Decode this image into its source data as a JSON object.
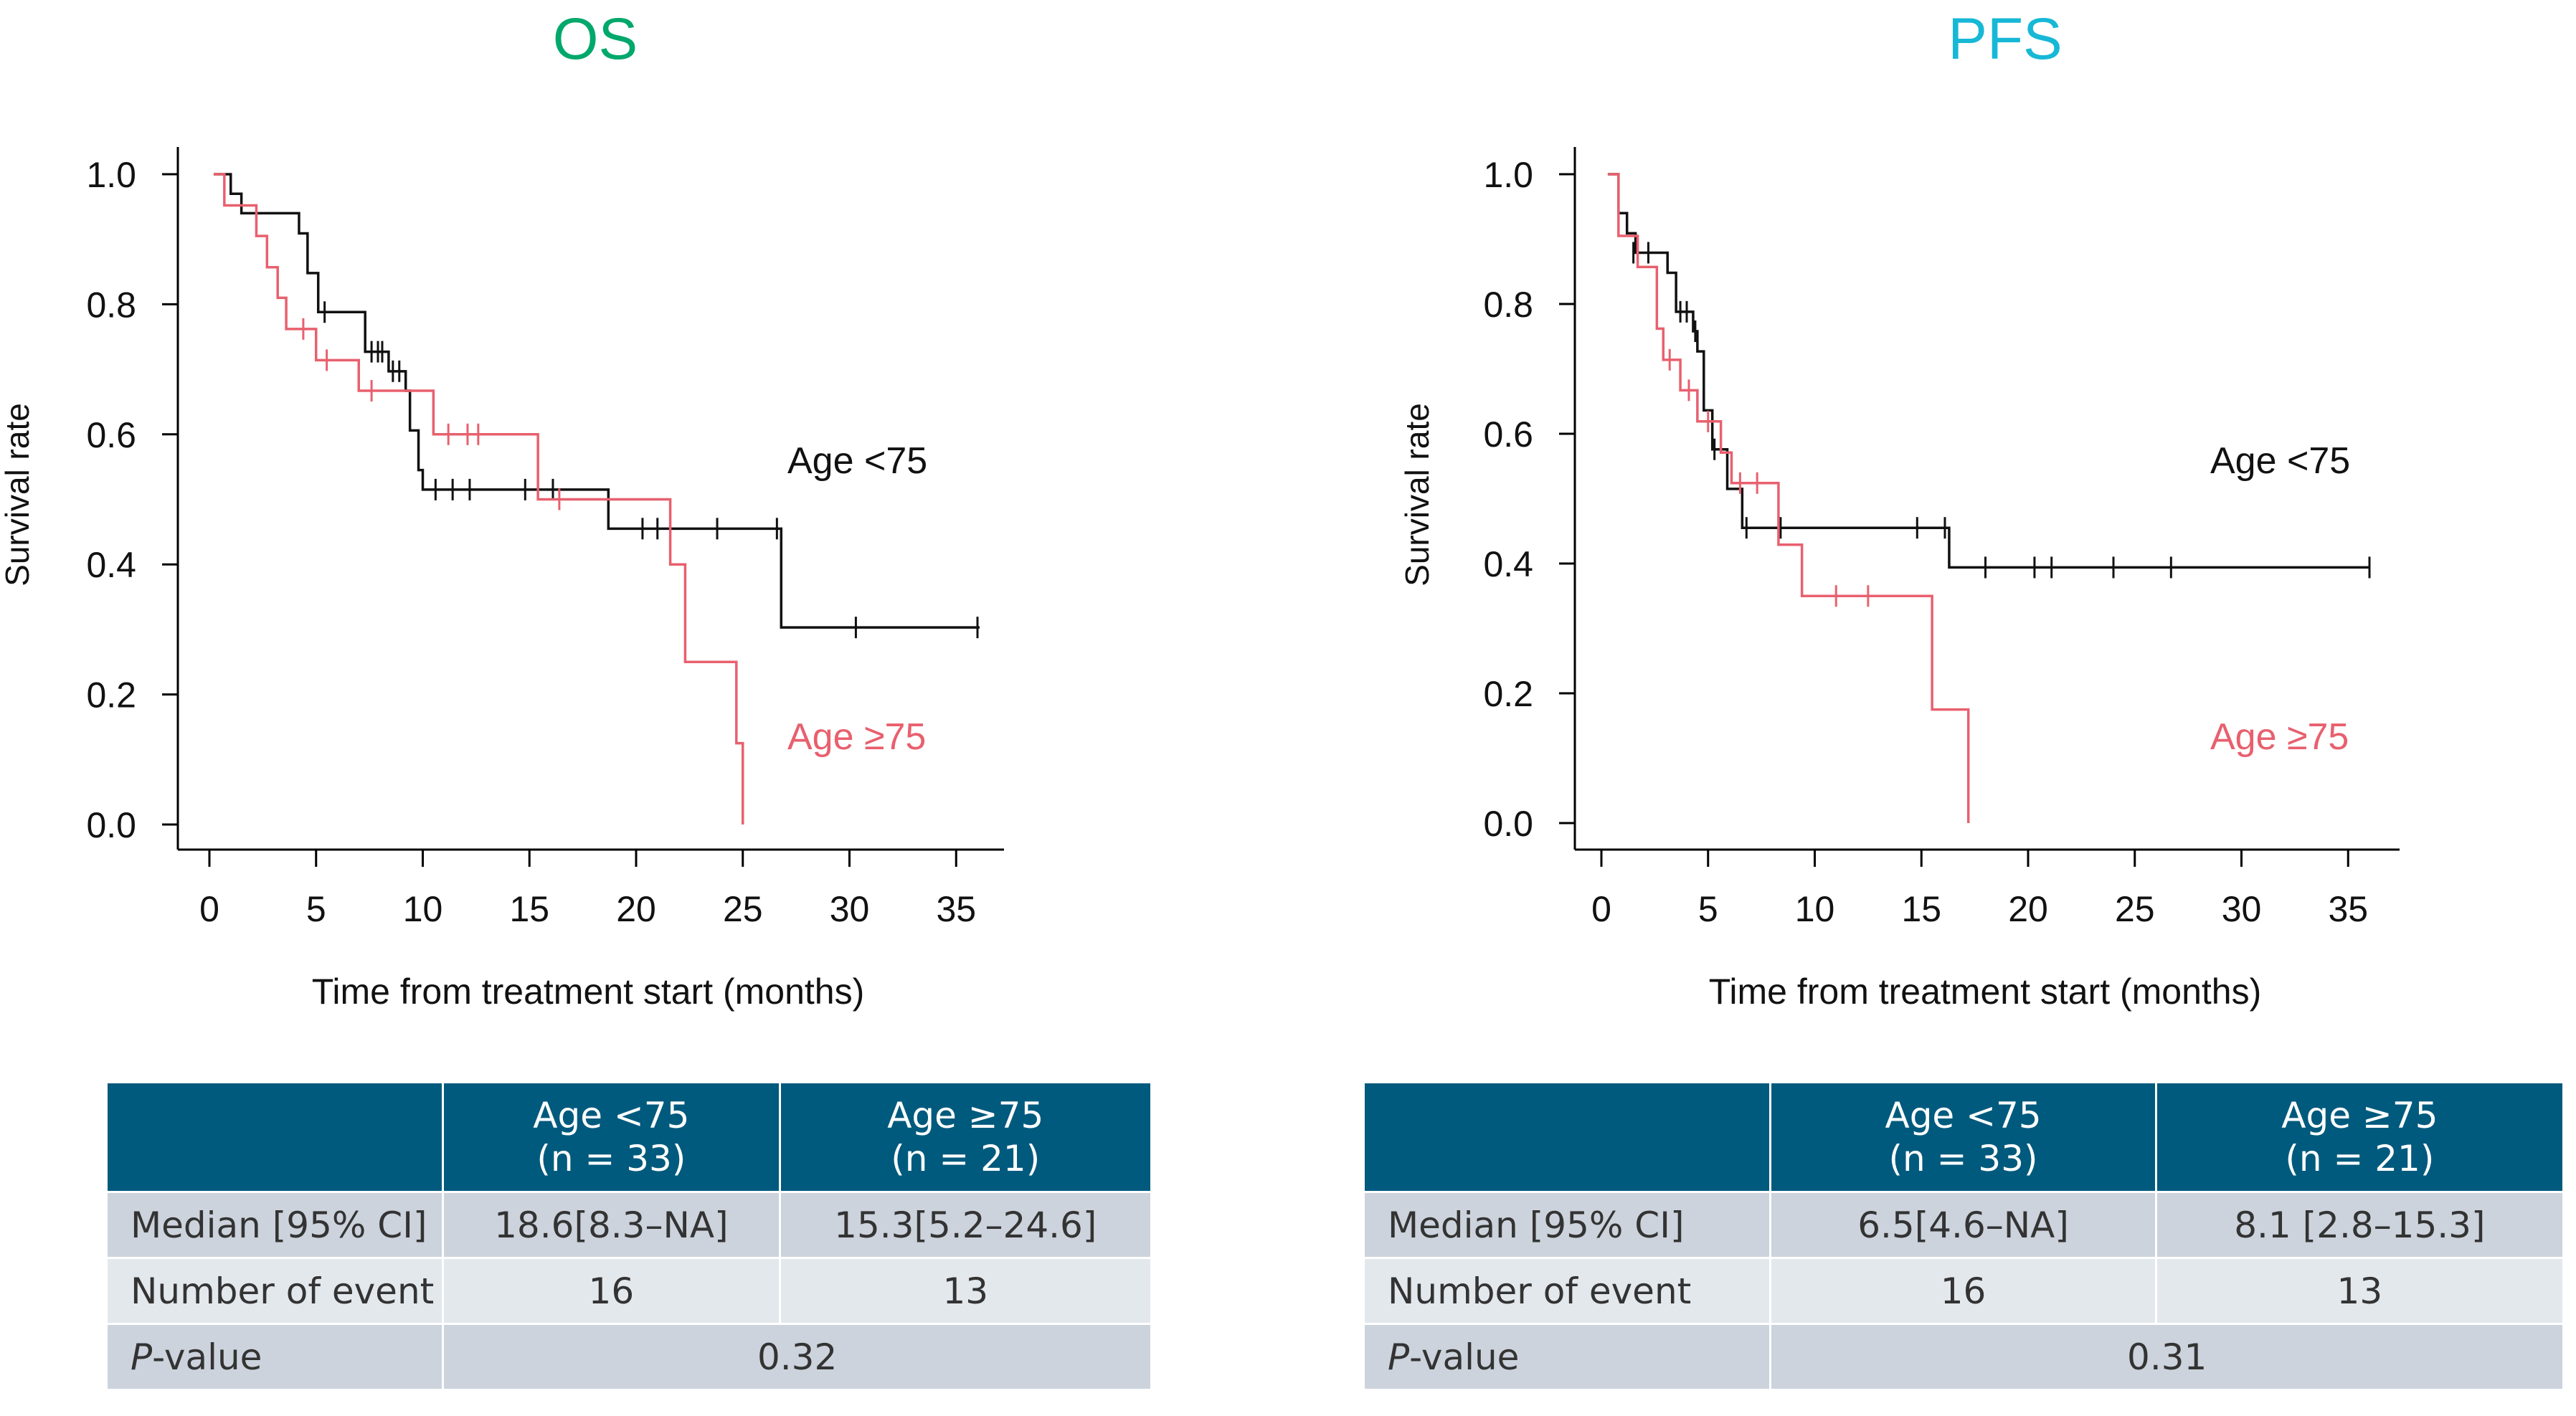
{
  "colors": {
    "os_title": "#00a86b",
    "pfs_title": "#17b8d6",
    "young": "#111111",
    "old": "#e8606e",
    "table_header": "#005a7d"
  },
  "chart_data": [
    {
      "id": "os",
      "type": "line",
      "subtype": "kaplan-meier",
      "title": "OS",
      "xlabel": "Time from treatment start (months)",
      "ylabel": "Survival rate",
      "xlim": [
        0,
        37
      ],
      "ylim": [
        0,
        1.04
      ],
      "xticks": [
        "0",
        "5",
        "10",
        "15",
        "20",
        "25",
        "30",
        "35"
      ],
      "yticks": [
        "0.0",
        "0.2",
        "0.4",
        "0.6",
        "0.8",
        "1.0"
      ],
      "series": [
        {
          "name": "Age <75",
          "label": "Age <75",
          "color": "#111111",
          "steps": [
            [
              0.2,
              1.0
            ],
            [
              1.0,
              0.97
            ],
            [
              1.5,
              0.94
            ],
            [
              4.2,
              0.909
            ],
            [
              4.6,
              0.848
            ],
            [
              5.1,
              0.788
            ],
            [
              7.3,
              0.727
            ],
            [
              8.4,
              0.697
            ],
            [
              9.2,
              0.667
            ],
            [
              9.4,
              0.606
            ],
            [
              9.8,
              0.545
            ],
            [
              10.0,
              0.515
            ],
            [
              18.7,
              0.455
            ],
            [
              26.8,
              0.303
            ],
            [
              36.1,
              0.303
            ]
          ],
          "censors": [
            [
              5.4,
              0.788
            ],
            [
              7.6,
              0.727
            ],
            [
              7.9,
              0.727
            ],
            [
              8.1,
              0.727
            ],
            [
              8.6,
              0.697
            ],
            [
              8.9,
              0.697
            ],
            [
              10.6,
              0.515
            ],
            [
              11.4,
              0.515
            ],
            [
              12.2,
              0.515
            ],
            [
              14.8,
              0.515
            ],
            [
              16.1,
              0.515
            ],
            [
              20.3,
              0.455
            ],
            [
              21.0,
              0.455
            ],
            [
              23.8,
              0.455
            ],
            [
              26.6,
              0.455
            ],
            [
              30.3,
              0.303
            ],
            [
              36.0,
              0.303
            ]
          ]
        },
        {
          "name": "Age ≥75",
          "label": "Age ≥75",
          "color": "#e8606e",
          "steps": [
            [
              0.2,
              1.0
            ],
            [
              0.7,
              0.952
            ],
            [
              2.2,
              0.905
            ],
            [
              2.7,
              0.857
            ],
            [
              3.2,
              0.81
            ],
            [
              3.6,
              0.762
            ],
            [
              5.0,
              0.714
            ],
            [
              7.0,
              0.667
            ],
            [
              10.5,
              0.6
            ],
            [
              15.4,
              0.5
            ],
            [
              21.6,
              0.4
            ],
            [
              22.3,
              0.25
            ],
            [
              24.7,
              0.125
            ],
            [
              25.0,
              0.0
            ]
          ],
          "censors": [
            [
              4.4,
              0.762
            ],
            [
              5.5,
              0.714
            ],
            [
              7.6,
              0.667
            ],
            [
              11.2,
              0.6
            ],
            [
              12.1,
              0.6
            ],
            [
              12.6,
              0.6
            ],
            [
              16.4,
              0.5
            ]
          ]
        }
      ]
    },
    {
      "id": "pfs",
      "type": "line",
      "subtype": "kaplan-meier",
      "title": "PFS",
      "xlabel": "Time from treatment start (months)",
      "ylabel": "Survival rate",
      "xlim": [
        0,
        37
      ],
      "ylim": [
        0,
        1.04
      ],
      "xticks": [
        "0",
        "5",
        "10",
        "15",
        "20",
        "25",
        "30",
        "35"
      ],
      "yticks": [
        "0.0",
        "0.2",
        "0.4",
        "0.6",
        "0.8",
        "1.0"
      ],
      "series": [
        {
          "name": "Age <75",
          "label": "Age <75",
          "color": "#111111",
          "steps": [
            [
              0.3,
              1.0
            ],
            [
              0.8,
              0.94
            ],
            [
              1.2,
              0.909
            ],
            [
              1.6,
              0.879
            ],
            [
              3.1,
              0.848
            ],
            [
              3.5,
              0.788
            ],
            [
              4.3,
              0.758
            ],
            [
              4.5,
              0.727
            ],
            [
              4.8,
              0.636
            ],
            [
              5.2,
              0.576
            ],
            [
              5.9,
              0.515
            ],
            [
              6.6,
              0.455
            ],
            [
              16.3,
              0.394
            ],
            [
              36.0,
              0.394
            ]
          ],
          "censors": [
            [
              1.5,
              0.879
            ],
            [
              2.2,
              0.879
            ],
            [
              3.7,
              0.788
            ],
            [
              4.0,
              0.788
            ],
            [
              4.4,
              0.758
            ],
            [
              5.3,
              0.576
            ],
            [
              6.8,
              0.455
            ],
            [
              8.4,
              0.455
            ],
            [
              14.8,
              0.455
            ],
            [
              16.1,
              0.455
            ],
            [
              18.0,
              0.394
            ],
            [
              20.3,
              0.394
            ],
            [
              21.1,
              0.394
            ],
            [
              24.0,
              0.394
            ],
            [
              26.7,
              0.394
            ],
            [
              36.0,
              0.394
            ]
          ]
        },
        {
          "name": "Age ≥75",
          "label": "Age ≥75",
          "color": "#e8606e",
          "steps": [
            [
              0.3,
              1.0
            ],
            [
              0.8,
              0.905
            ],
            [
              1.7,
              0.857
            ],
            [
              2.6,
              0.762
            ],
            [
              2.9,
              0.714
            ],
            [
              3.7,
              0.667
            ],
            [
              4.5,
              0.619
            ],
            [
              5.6,
              0.571
            ],
            [
              6.1,
              0.524
            ],
            [
              8.3,
              0.429
            ],
            [
              9.4,
              0.35
            ],
            [
              15.5,
              0.175
            ],
            [
              17.2,
              0.0
            ]
          ],
          "censors": [
            [
              3.2,
              0.714
            ],
            [
              4.1,
              0.667
            ],
            [
              5.0,
              0.619
            ],
            [
              6.5,
              0.524
            ],
            [
              7.3,
              0.524
            ],
            [
              11.0,
              0.35
            ],
            [
              12.5,
              0.35
            ]
          ]
        }
      ]
    }
  ],
  "tables": {
    "os": {
      "header": {
        "col1": "Age <75",
        "col1_n": "(n = 33)",
        "col2": "Age ≥75",
        "col2_n": "(n = 21)"
      },
      "rows": {
        "median": {
          "label": "Median [95% CI]",
          "v1": "18.6[8.3–NA]",
          "v2": "15.3[5.2–24.6]"
        },
        "events": {
          "label": "Number of event",
          "v1": "16",
          "v2": "13"
        },
        "pvalue": {
          "label_p": "P",
          "label_rest": "-value",
          "value": "0.32"
        }
      }
    },
    "pfs": {
      "header": {
        "col1": "Age <75",
        "col1_n": "(n = 33)",
        "col2": "Age ≥75",
        "col2_n": "(n = 21)"
      },
      "rows": {
        "median": {
          "label": "Median [95% CI]",
          "v1": "6.5[4.6–NA]",
          "v2": "8.1 [2.8–15.3]"
        },
        "events": {
          "label": "Number of event",
          "v1": "16",
          "v2": "13"
        },
        "pvalue": {
          "label_p": "P",
          "label_rest": "-value",
          "value": "0.31"
        }
      }
    }
  }
}
